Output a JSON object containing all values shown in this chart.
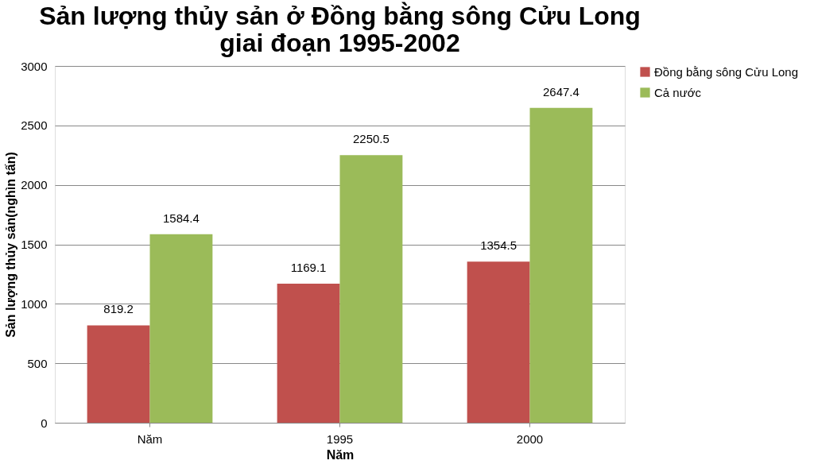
{
  "chart_data": {
    "type": "bar",
    "title": "Sản lượng thủy sản ở Đồng bằng sông Cửu Long giai đoạn 1995-2002",
    "xlabel": "Năm",
    "ylabel": "Sản lượng thủy sản(nghìn tấn)",
    "categories": [
      "Năm",
      "1995",
      "2000"
    ],
    "series": [
      {
        "name": "Đồng bằng sông Cửu Long",
        "color": "#c0504d",
        "values": [
          819.2,
          1169.1,
          1354.5
        ]
      },
      {
        "name": "Cả nước",
        "color": "#9bbb59",
        "values": [
          1584.4,
          2250.5,
          2647.4
        ]
      }
    ],
    "ylim": [
      0,
      3000
    ],
    "yticks": [
      0,
      500,
      1000,
      1500,
      2000,
      2500,
      3000
    ],
    "grid": "y",
    "legend": "right",
    "data_labels": true
  }
}
